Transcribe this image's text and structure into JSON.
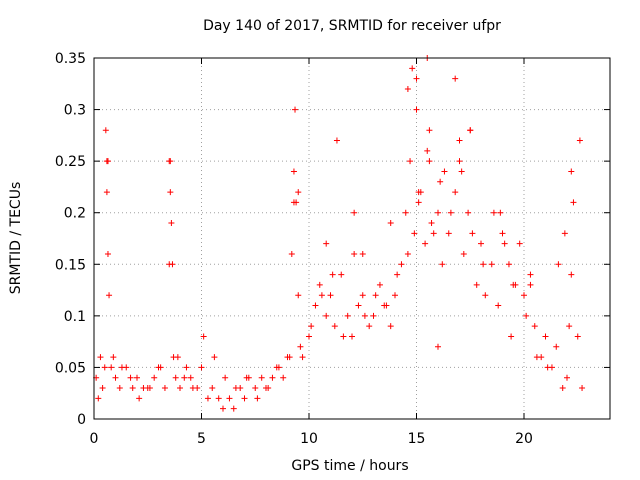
{
  "chart_data": {
    "type": "scatter",
    "title": "Day 140 of 2017, SRMTID for receiver ufpr",
    "xlabel": "GPS time / hours",
    "ylabel": "SRMTID / TECUs",
    "xlim": [
      0,
      24
    ],
    "ylim": [
      0,
      0.35
    ],
    "xticks": [
      0,
      5,
      10,
      15,
      20
    ],
    "xtick_labels": [
      "0",
      "5",
      "10",
      "15",
      "20"
    ],
    "yticks": [
      0,
      0.05,
      0.1,
      0.15,
      0.2,
      0.25,
      0.3,
      0.35
    ],
    "ytick_labels": [
      "0",
      "0.05",
      "0.1",
      "0.15",
      "0.2",
      "0.25",
      "0.3",
      "0.35"
    ],
    "grid": true,
    "marker": "+",
    "color": "#ff0000",
    "series": [
      {
        "name": "SRMTID",
        "x": [
          0.1,
          0.3,
          0.5,
          0.55,
          0.6,
          0.65,
          0.7,
          0.8,
          1.0,
          1.2,
          1.5,
          1.8,
          2.0,
          2.3,
          2.5,
          2.8,
          3.0,
          3.3,
          3.5,
          3.55,
          3.6,
          3.65,
          3.7,
          3.8,
          4.0,
          4.3,
          4.5,
          4.8,
          5.0,
          5.3,
          5.5,
          5.8,
          6.0,
          6.3,
          6.5,
          6.8,
          7.0,
          7.2,
          7.5,
          7.8,
          8.0,
          8.3,
          8.5,
          8.8,
          9.0,
          9.2,
          9.3,
          9.4,
          9.5,
          9.7,
          10.0,
          10.3,
          10.5,
          10.8,
          11.0,
          11.2,
          11.5,
          11.8,
          12.0,
          12.3,
          12.5,
          12.8,
          13.0,
          13.3,
          13.5,
          13.8,
          14.0,
          14.3,
          14.5,
          14.7,
          14.9,
          15.0,
          15.2,
          15.4,
          15.5,
          15.6,
          15.8,
          16.0,
          16.2,
          16.5,
          16.8,
          17.0,
          17.2,
          17.4,
          17.5,
          17.8,
          18.0,
          18.2,
          18.5,
          18.8,
          19.0,
          19.3,
          19.5,
          19.8,
          20.0,
          20.3,
          20.5,
          20.8,
          21.0,
          21.3,
          21.5,
          21.8,
          22.0,
          22.2,
          22.3,
          22.5,
          22.7,
          0.2,
          0.4,
          0.9,
          1.3,
          1.7,
          2.1,
          2.6,
          3.1,
          3.9,
          4.2,
          4.6,
          5.1,
          5.6,
          6.1,
          6.6,
          7.1,
          7.6,
          8.1,
          8.6,
          9.1,
          9.6,
          10.1,
          10.6,
          11.1,
          11.6,
          12.1,
          12.6,
          13.1,
          13.6,
          14.1,
          14.6,
          15.1,
          15.7,
          16.1,
          16.6,
          17.1,
          17.6,
          18.1,
          18.6,
          19.1,
          19.6,
          20.1,
          20.6,
          21.1,
          21.6,
          22.1,
          22.6,
          0.6,
          0.65,
          3.5,
          3.55,
          9.3,
          9.35,
          11.3,
          12.1,
          14.6,
          14.8,
          15.0,
          15.1,
          15.5,
          15.6,
          16.3,
          16.8,
          17.0,
          17.5,
          18.9,
          21.9,
          22.2,
          9.5,
          10.8,
          12.5,
          13.8,
          16.0,
          19.4,
          20.3
        ],
        "y": [
          0.04,
          0.06,
          0.05,
          0.28,
          0.25,
          0.16,
          0.12,
          0.05,
          0.04,
          0.03,
          0.05,
          0.03,
          0.04,
          0.03,
          0.03,
          0.04,
          0.05,
          0.03,
          0.25,
          0.22,
          0.19,
          0.15,
          0.06,
          0.04,
          0.03,
          0.05,
          0.04,
          0.03,
          0.05,
          0.02,
          0.03,
          0.02,
          0.01,
          0.02,
          0.01,
          0.03,
          0.02,
          0.04,
          0.03,
          0.04,
          0.03,
          0.04,
          0.05,
          0.04,
          0.06,
          0.16,
          0.24,
          0.21,
          0.12,
          0.06,
          0.08,
          0.11,
          0.13,
          0.1,
          0.12,
          0.09,
          0.14,
          0.1,
          0.08,
          0.11,
          0.12,
          0.09,
          0.1,
          0.13,
          0.11,
          0.09,
          0.12,
          0.15,
          0.2,
          0.25,
          0.18,
          0.3,
          0.22,
          0.17,
          0.35,
          0.25,
          0.18,
          0.2,
          0.15,
          0.18,
          0.22,
          0.25,
          0.16,
          0.2,
          0.28,
          0.13,
          0.17,
          0.12,
          0.15,
          0.11,
          0.18,
          0.15,
          0.13,
          0.17,
          0.12,
          0.14,
          0.09,
          0.06,
          0.08,
          0.05,
          0.07,
          0.03,
          0.04,
          0.24,
          0.21,
          0.08,
          0.03,
          0.02,
          0.03,
          0.06,
          0.05,
          0.04,
          0.02,
          0.03,
          0.05,
          0.06,
          0.04,
          0.03,
          0.08,
          0.06,
          0.04,
          0.03,
          0.04,
          0.02,
          0.03,
          0.05,
          0.06,
          0.07,
          0.09,
          0.12,
          0.14,
          0.08,
          0.16,
          0.1,
          0.12,
          0.11,
          0.14,
          0.16,
          0.21,
          0.19,
          0.23,
          0.2,
          0.24,
          0.18,
          0.15,
          0.2,
          0.17,
          0.13,
          0.1,
          0.06,
          0.05,
          0.15,
          0.09,
          0.27,
          0.22,
          0.25,
          0.15,
          0.25,
          0.21,
          0.3,
          0.27,
          0.2,
          0.32,
          0.34,
          0.33,
          0.22,
          0.26,
          0.28,
          0.24,
          0.33,
          0.27,
          0.28,
          0.2,
          0.18,
          0.14,
          0.22,
          0.17,
          0.16,
          0.19,
          0.07,
          0.08,
          0.13
        ]
      }
    ]
  }
}
